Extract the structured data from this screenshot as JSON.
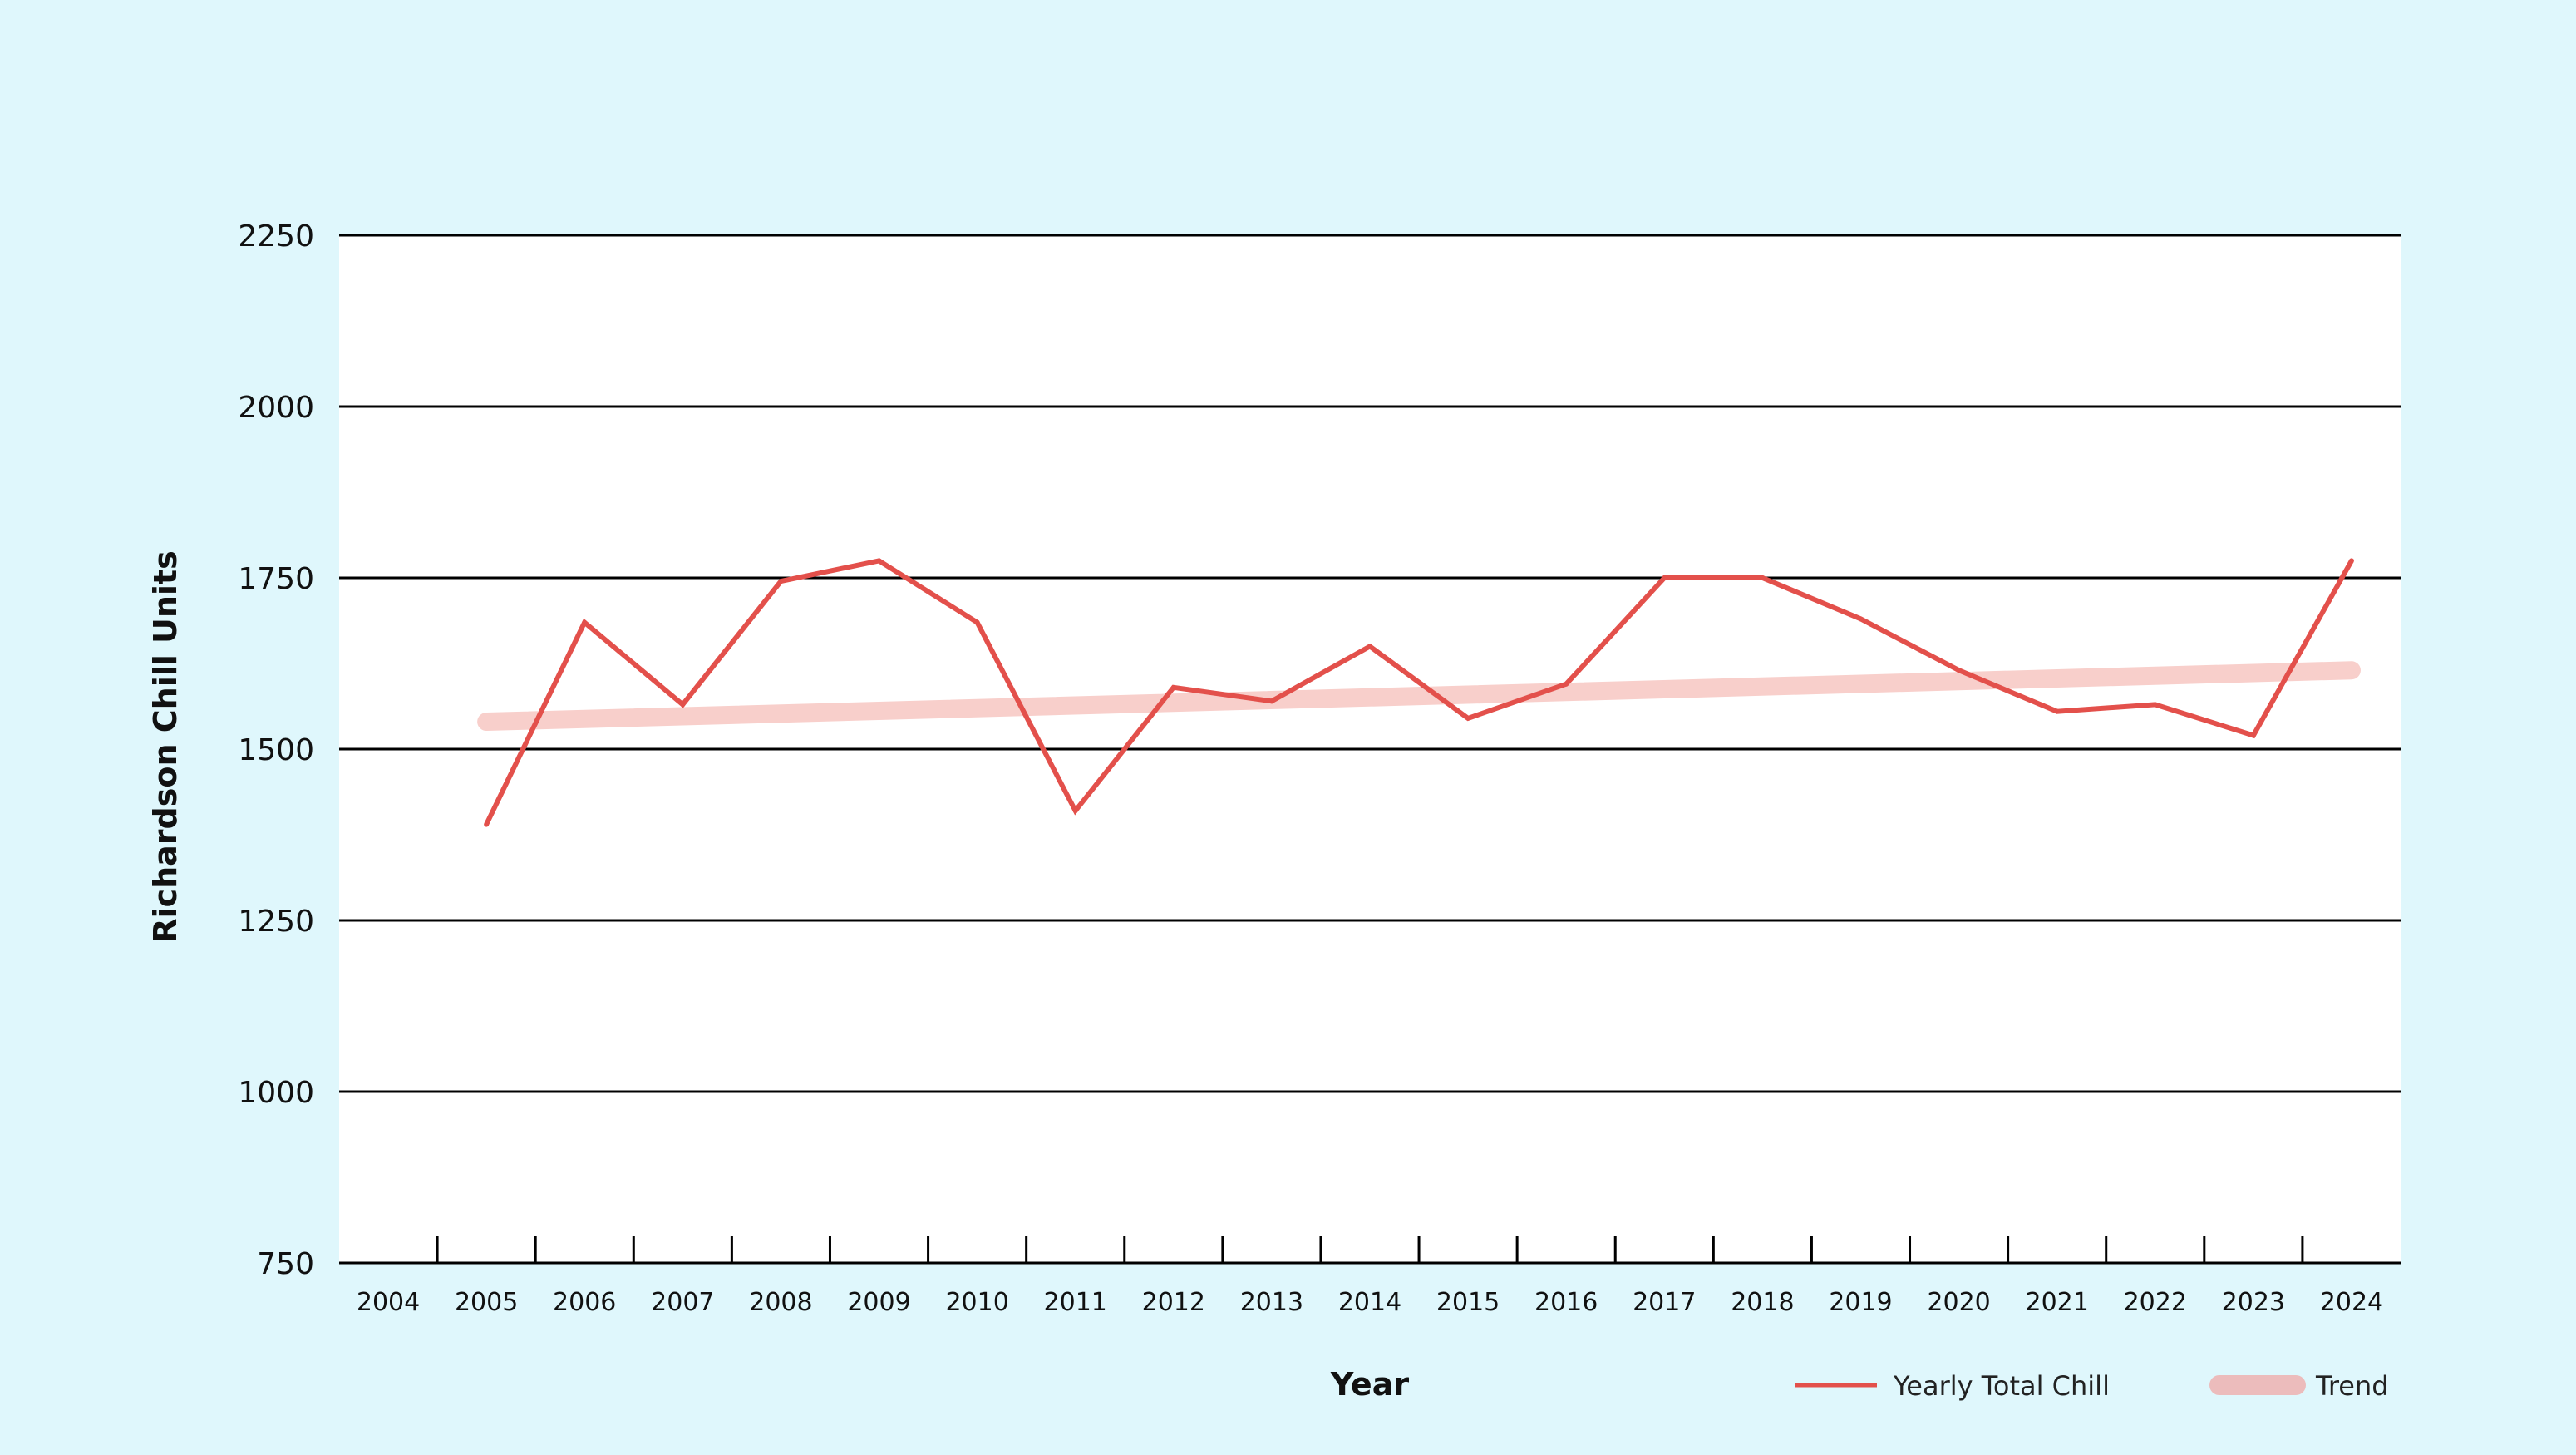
{
  "colors": {
    "background": "#dff7fc",
    "plot_background": "#ffffff",
    "line": "#e3504b",
    "trend": "#f8cfcb",
    "legend_trend": "#ecbcbc",
    "grid": "#000000",
    "text": "#111111"
  },
  "chart_data": {
    "type": "line",
    "title": "",
    "xlabel": "Year",
    "ylabel": "Richardson Chill Units",
    "x_categories": [
      "2004",
      "2005",
      "2006",
      "2007",
      "2008",
      "2009",
      "2010",
      "2011",
      "2012",
      "2013",
      "2014",
      "2015",
      "2016",
      "2017",
      "2018",
      "2019",
      "2020",
      "2021",
      "2022",
      "2023",
      "2024"
    ],
    "ylim": [
      750,
      2250
    ],
    "yticks": [
      750,
      1000,
      1250,
      1500,
      1750,
      2000,
      2250
    ],
    "grid": "horizontal",
    "legend_position": "bottom-right",
    "series": [
      {
        "name": "Yearly Total Chill",
        "style": "line",
        "x": [
          "2005",
          "2006",
          "2007",
          "2008",
          "2009",
          "2010",
          "2011",
          "2012",
          "2013",
          "2014",
          "2015",
          "2016",
          "2017",
          "2018",
          "2019",
          "2020",
          "2021",
          "2022",
          "2023",
          "2024"
        ],
        "values": [
          1390,
          1685,
          1565,
          1745,
          1775,
          1685,
          1410,
          1590,
          1570,
          1650,
          1545,
          1595,
          1750,
          1750,
          1690,
          1615,
          1555,
          1565,
          1520,
          1775
        ]
      },
      {
        "name": "Trend",
        "style": "trend",
        "x": [
          "2005",
          "2024"
        ],
        "values": [
          1540,
          1615
        ]
      }
    ]
  }
}
